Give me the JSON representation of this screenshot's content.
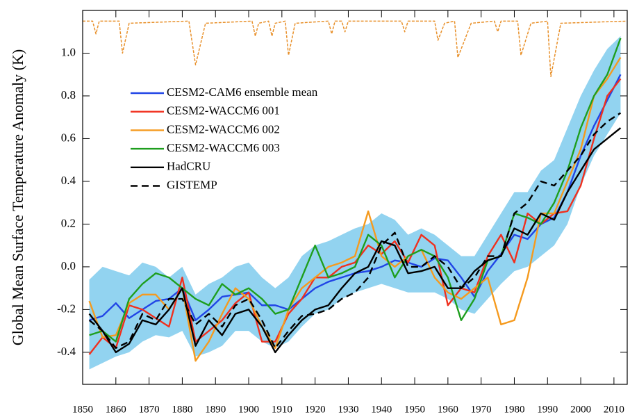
{
  "chart_data": {
    "type": "line",
    "ylabel": "Global Mean Surface Temperature Anomaly (K)",
    "xlim": [
      1850,
      2014
    ],
    "ylim": [
      -0.55,
      1.2
    ],
    "xticks": [
      1850,
      1860,
      1870,
      1880,
      1890,
      1900,
      1910,
      1920,
      1930,
      1940,
      1950,
      1960,
      1970,
      1980,
      1990,
      2000,
      2010
    ],
    "yticks": [
      -0.4,
      -0.2,
      {
        "value": 0,
        "label": "0.0"
      },
      0.2,
      0.4,
      0.6,
      0.8,
      {
        "value": 1,
        "label": "1.0"
      }
    ],
    "x": [
      1852,
      1856,
      1860,
      1864,
      1868,
      1872,
      1876,
      1880,
      1884,
      1888,
      1892,
      1896,
      1900,
      1904,
      1908,
      1912,
      1916,
      1920,
      1924,
      1928,
      1932,
      1936,
      1940,
      1944,
      1948,
      1952,
      1956,
      1960,
      1964,
      1968,
      1972,
      1976,
      1980,
      1984,
      1988,
      1992,
      1996,
      2000,
      2004,
      2008,
      2012
    ],
    "band": {
      "color": "#92d3f0",
      "low": [
        -0.48,
        -0.45,
        -0.42,
        -0.4,
        -0.35,
        -0.32,
        -0.33,
        -0.3,
        -0.42,
        -0.4,
        -0.37,
        -0.3,
        -0.3,
        -0.35,
        -0.38,
        -0.35,
        -0.28,
        -0.22,
        -0.2,
        -0.15,
        -0.12,
        -0.1,
        -0.08,
        -0.1,
        -0.12,
        -0.12,
        -0.12,
        -0.15,
        -0.2,
        -0.22,
        -0.15,
        -0.08,
        -0.02,
        0.0,
        0.05,
        0.1,
        0.2,
        0.38,
        0.52,
        0.62,
        0.72
      ],
      "high": [
        -0.06,
        0.0,
        -0.02,
        -0.04,
        0.02,
        0.0,
        -0.05,
        0.0,
        -0.13,
        -0.08,
        -0.05,
        0.0,
        0.02,
        -0.05,
        -0.1,
        -0.05,
        0.05,
        0.1,
        0.12,
        0.15,
        0.18,
        0.2,
        0.25,
        0.22,
        0.15,
        0.18,
        0.15,
        0.1,
        0.05,
        0.05,
        0.15,
        0.25,
        0.35,
        0.35,
        0.45,
        0.5,
        0.65,
        0.8,
        0.92,
        1.02,
        1.08
      ]
    },
    "series": [
      {
        "name": "CESM2-CAM6 ensemble mean",
        "color": "#2145e6",
        "values": [
          -0.25,
          -0.23,
          -0.17,
          -0.24,
          -0.2,
          -0.16,
          -0.15,
          -0.1,
          -0.25,
          -0.2,
          -0.14,
          -0.13,
          -0.12,
          -0.18,
          -0.18,
          -0.2,
          -0.15,
          -0.1,
          -0.07,
          -0.05,
          -0.03,
          -0.02,
          0.0,
          0.03,
          0.02,
          0.0,
          0.04,
          0.03,
          -0.05,
          -0.14,
          -0.02,
          0.06,
          0.15,
          0.13,
          0.2,
          0.23,
          0.35,
          0.52,
          0.66,
          0.78,
          0.9
        ]
      },
      {
        "name": "CESM2-WACCM6 001",
        "color": "#f0301e",
        "values": [
          -0.41,
          -0.33,
          -0.38,
          -0.18,
          -0.2,
          -0.24,
          -0.28,
          -0.05,
          -0.35,
          -0.3,
          -0.25,
          -0.17,
          -0.12,
          -0.35,
          -0.35,
          -0.22,
          -0.15,
          -0.05,
          -0.05,
          0.0,
          0.02,
          0.1,
          0.06,
          0.12,
          0.02,
          0.15,
          0.1,
          -0.18,
          -0.1,
          -0.12,
          0.05,
          0.15,
          0.02,
          0.25,
          0.2,
          0.25,
          0.26,
          0.38,
          0.6,
          0.8,
          0.88
        ]
      },
      {
        "name": "CESM2-WACCM6 002",
        "color": "#f59a1e",
        "values": [
          -0.16,
          -0.33,
          -0.32,
          -0.17,
          -0.13,
          -0.13,
          -0.2,
          -0.1,
          -0.44,
          -0.35,
          -0.22,
          -0.1,
          -0.15,
          -0.28,
          -0.38,
          -0.2,
          -0.1,
          -0.05,
          0.0,
          0.02,
          0.05,
          0.26,
          0.05,
          0.0,
          0.05,
          0.08,
          -0.05,
          -0.12,
          -0.15,
          -0.1,
          -0.05,
          -0.27,
          -0.25,
          -0.05,
          0.25,
          0.25,
          0.4,
          0.55,
          0.8,
          0.88,
          0.98
        ]
      },
      {
        "name": "CESM2-WACCM6 003",
        "color": "#1e9e1e",
        "values": [
          -0.32,
          -0.3,
          -0.35,
          -0.15,
          -0.08,
          -0.03,
          -0.05,
          -0.1,
          -0.15,
          -0.18,
          -0.08,
          -0.13,
          -0.1,
          -0.15,
          -0.22,
          -0.2,
          -0.05,
          0.1,
          -0.05,
          -0.03,
          0.0,
          0.15,
          0.1,
          -0.05,
          0.05,
          0.08,
          0.05,
          -0.05,
          -0.25,
          -0.15,
          0.03,
          0.05,
          0.25,
          0.23,
          0.2,
          0.3,
          0.45,
          0.65,
          0.8,
          0.9,
          1.07
        ]
      },
      {
        "name": "HadCRU",
        "color": "#000000",
        "values": [
          -0.22,
          -0.3,
          -0.4,
          -0.36,
          -0.25,
          -0.27,
          -0.2,
          -0.1,
          -0.37,
          -0.25,
          -0.32,
          -0.22,
          -0.2,
          -0.28,
          -0.4,
          -0.32,
          -0.25,
          -0.2,
          -0.18,
          -0.1,
          -0.03,
          0.0,
          0.12,
          0.1,
          -0.03,
          -0.02,
          0.0,
          -0.1,
          -0.1,
          -0.02,
          0.03,
          0.05,
          0.18,
          0.15,
          0.25,
          0.22,
          0.35,
          0.45,
          0.55,
          0.6,
          0.65
        ]
      },
      {
        "name": "GISTEMP",
        "color": "#000000",
        "dashed": true,
        "values": [
          -0.25,
          -0.3,
          -0.38,
          -0.35,
          -0.22,
          -0.25,
          -0.15,
          -0.15,
          -0.27,
          -0.22,
          -0.28,
          -0.18,
          -0.15,
          -0.25,
          -0.38,
          -0.3,
          -0.23,
          -0.22,
          -0.2,
          -0.15,
          -0.12,
          -0.05,
          0.1,
          0.16,
          0.0,
          0.0,
          0.05,
          0.0,
          -0.1,
          -0.05,
          0.05,
          0.05,
          0.25,
          0.3,
          0.4,
          0.38,
          0.45,
          0.52,
          0.62,
          0.68,
          0.72
        ]
      },
      {
        "color": "#e8902a",
        "dashed": true,
        "x": [
          1850,
          1853,
          1854,
          1855,
          1861,
          1862,
          1864,
          1882,
          1884,
          1887,
          1901,
          1902,
          1903,
          1906,
          1907,
          1908,
          1911,
          1912,
          1914,
          1924,
          1925,
          1926,
          1928,
          1929,
          1930,
          1946,
          1947,
          1948,
          1956,
          1957,
          1959,
          1962,
          1963,
          1965,
          1967,
          1974,
          1975,
          1976,
          1981,
          1982,
          1985,
          1990,
          1991,
          1994,
          2014
        ],
        "values": [
          1.15,
          1.15,
          1.09,
          1.15,
          1.15,
          1.0,
          1.14,
          1.15,
          0.945,
          1.14,
          1.15,
          1.08,
          1.14,
          1.15,
          1.08,
          1.14,
          1.15,
          0.99,
          1.14,
          1.15,
          1.09,
          1.15,
          1.15,
          1.1,
          1.15,
          1.15,
          1.1,
          1.15,
          1.15,
          1.06,
          1.14,
          1.15,
          0.98,
          1.06,
          1.14,
          1.15,
          1.1,
          1.15,
          1.15,
          0.99,
          1.14,
          1.15,
          0.89,
          1.14,
          1.15
        ]
      }
    ]
  }
}
